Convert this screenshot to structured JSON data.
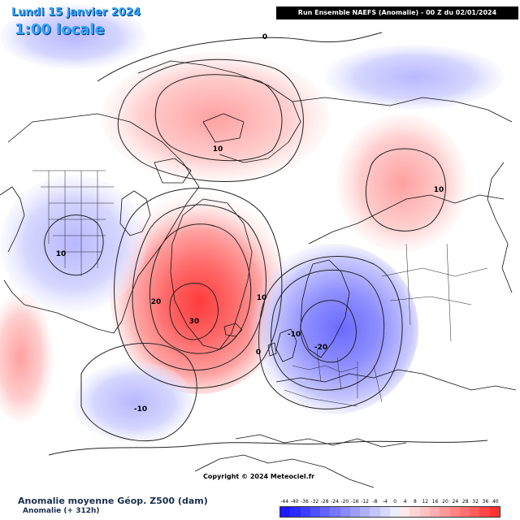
{
  "header": {
    "date": "Lundi 15 janvier 2024",
    "time": "1:00 locale",
    "run_info": "Run Ensemble NAEFS  (Anomalie)  -  00 Z du 02/01/2024"
  },
  "footer": {
    "title": "Anomalie moyenne Géop. Z500 (dam)",
    "subtitle": "Anomalie (+ 312h)",
    "copyright": "Copyright © 2024 Meteociel.fr"
  },
  "legend": {
    "labels": [
      "-44",
      "-40",
      "-36",
      "-32",
      "-28",
      "-24",
      "-20",
      "-16",
      "-12",
      "-8",
      "-4",
      "0",
      "4",
      "8",
      "12",
      "16",
      "20",
      "24",
      "28",
      "32",
      "36",
      "40"
    ],
    "colors": [
      "#1a1aff",
      "#2b2bff",
      "#3d3dff",
      "#5050ff",
      "#6363ff",
      "#7676ff",
      "#8a8aff",
      "#9d9dff",
      "#b0b0ff",
      "#c4c4ff",
      "#d8d8ff",
      "#ececff",
      "#ffeaea",
      "#ffd6d6",
      "#ffc2c2",
      "#ffadad",
      "#ff9999",
      "#ff8585",
      "#ff7070",
      "#ff5c5c",
      "#ff4747",
      "#ff3333"
    ]
  },
  "contour_labels": [
    {
      "text": "0"
    },
    {
      "text": "10"
    },
    {
      "text": "10"
    },
    {
      "text": "10"
    },
    {
      "text": "10"
    },
    {
      "text": "20"
    },
    {
      "text": "30"
    },
    {
      "text": "-10"
    },
    {
      "text": "-20"
    },
    {
      "text": "-10"
    },
    {
      "text": "0"
    }
  ]
}
